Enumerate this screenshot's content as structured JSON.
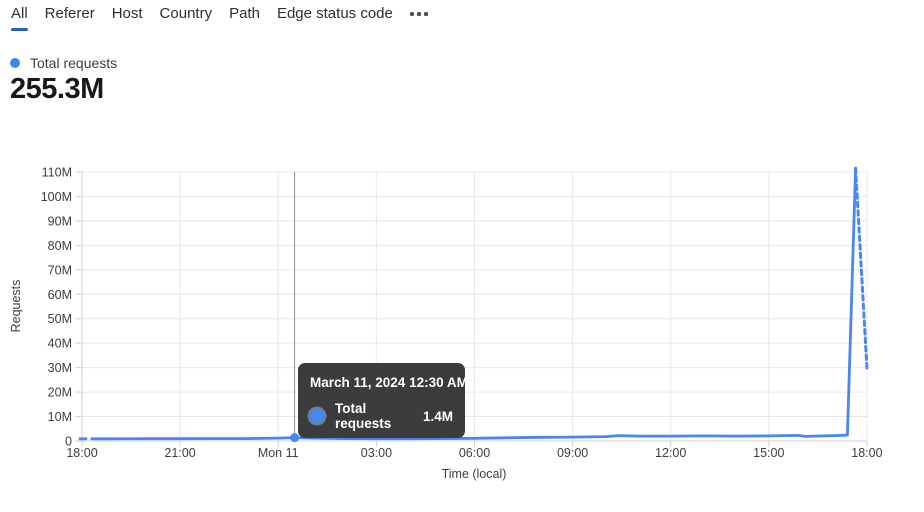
{
  "tabs": {
    "items": [
      {
        "label": "All",
        "active": true
      },
      {
        "label": "Referer",
        "active": false
      },
      {
        "label": "Host",
        "active": false
      },
      {
        "label": "Country",
        "active": false
      },
      {
        "label": "Path",
        "active": false
      },
      {
        "label": "Edge status code",
        "active": false
      }
    ],
    "more_icon": "ellipsis",
    "active_underline_color": "#2a5bd7"
  },
  "legend": {
    "label": "Total requests",
    "total": "255.3M",
    "dot_color": "#3f86f5"
  },
  "tooltip": {
    "title": "March 11, 2024 12:30 AM",
    "series": "Total requests",
    "value": "1.4M",
    "background": "#3c3c3c"
  },
  "chart_data": {
    "type": "line",
    "title": "Total requests",
    "xlabel": "Time (local)",
    "ylabel": "Requests",
    "x_ticks": [
      "18:00",
      "21:00",
      "Mon 11",
      "03:00",
      "06:00",
      "09:00",
      "12:00",
      "15:00",
      "18:00"
    ],
    "y_ticks": [
      "110M",
      "100M",
      "90M",
      "80M",
      "70M",
      "60M",
      "50M",
      "40M",
      "30M",
      "20M",
      "10M",
      "0"
    ],
    "x_tick_hours": [
      0,
      3,
      6,
      9,
      12,
      15,
      18,
      21,
      24
    ],
    "x_range_hours": [
      0,
      24
    ],
    "ylim_millions": [
      0,
      110
    ],
    "grid": true,
    "legend_position": "top-left",
    "series": [
      {
        "name": "Total requests",
        "color": "#4886f0",
        "lead_points": [
          [
            -0.06,
            0.9
          ],
          [
            0.12,
            0.9
          ]
        ],
        "solid_points": [
          [
            0.3,
            0.9
          ],
          [
            1,
            0.9
          ],
          [
            2,
            0.95
          ],
          [
            3,
            0.95
          ],
          [
            4,
            1.0
          ],
          [
            5,
            1.0
          ],
          [
            6,
            1.2
          ],
          [
            6.5,
            1.4
          ],
          [
            7,
            1.2
          ],
          [
            8,
            1.0
          ],
          [
            9,
            0.95
          ],
          [
            10,
            0.95
          ],
          [
            11,
            1.0
          ],
          [
            12,
            1.1
          ],
          [
            13,
            1.3
          ],
          [
            14,
            1.5
          ],
          [
            15,
            1.6
          ],
          [
            16,
            1.8
          ],
          [
            16.4,
            2.2
          ],
          [
            17,
            2.0
          ],
          [
            18,
            2.0
          ],
          [
            19,
            2.1
          ],
          [
            20,
            2.0
          ],
          [
            21,
            2.1
          ],
          [
            21.9,
            2.3
          ],
          [
            22.1,
            1.9
          ],
          [
            23,
            2.2
          ],
          [
            23.4,
            2.4
          ],
          [
            23.65,
            111.5
          ]
        ],
        "dashed_points": [
          [
            23.65,
            111.5
          ],
          [
            24.0,
            29.5
          ]
        ]
      }
    ],
    "hover_point": {
      "hour": 6.5,
      "value_millions": 1.4
    }
  }
}
